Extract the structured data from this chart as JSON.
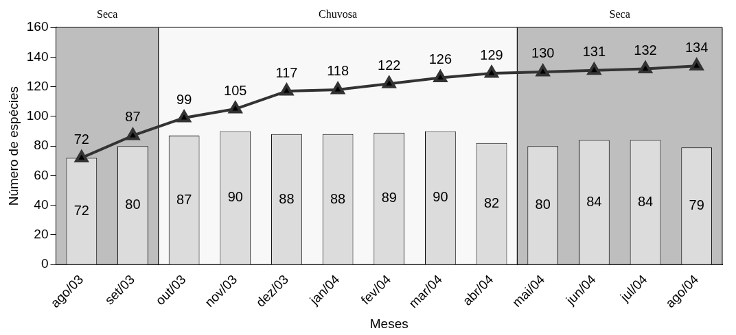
{
  "chart_data": {
    "type": "bar",
    "xlabel": "Meses",
    "ylabel": "Número de espécies",
    "categories": [
      "ago/03",
      "set/03",
      "out/03",
      "nov/03",
      "dez/03",
      "jan/04",
      "fev/04",
      "mar/04",
      "abr/04",
      "mai/04",
      "jun/04",
      "jul/04",
      "ago/04"
    ],
    "series": [
      {
        "color": "#dcdcdc",
        "values": [
          72,
          80,
          87,
          90,
          88,
          88,
          89,
          90,
          82,
          80,
          84,
          84,
          79
        ]
      },
      {
        "type": "line",
        "color": "#333333",
        "marker": "triangle",
        "line_style": "solid",
        "values": [
          72,
          87,
          99,
          105,
          117,
          118,
          122,
          126,
          129,
          130,
          131,
          132,
          134
        ]
      }
    ],
    "ylim": [
      0,
      160
    ],
    "yticks": [
      0,
      20,
      40,
      60,
      80,
      100,
      120,
      140,
      160
    ],
    "grid": false,
    "legend": false,
    "data_labels": true,
    "bands": [
      {
        "axis": "x",
        "from": "ago/03",
        "to": "set/03",
        "label": "Seca",
        "color": "#bebebe"
      },
      {
        "axis": "x",
        "from": "out/03",
        "to": "abr/04",
        "label": "Chuvosa",
        "color": "#f8f8f8"
      },
      {
        "axis": "x",
        "from": "mai/04",
        "to": "ago/04",
        "label": "Seca",
        "color": "#bebebe"
      }
    ]
  }
}
